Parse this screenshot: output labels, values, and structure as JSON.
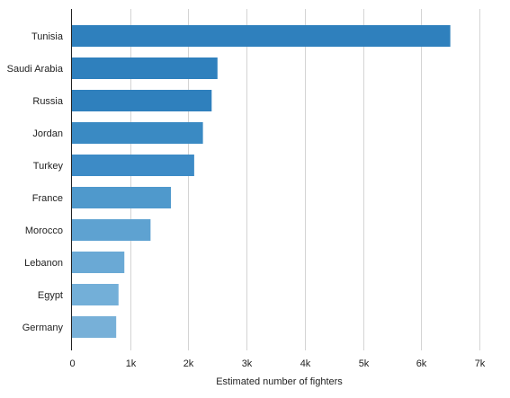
{
  "chart_data": {
    "type": "bar",
    "orientation": "horizontal",
    "categories": [
      "Tunisia",
      "Saudi Arabia",
      "Russia",
      "Jordan",
      "Turkey",
      "France",
      "Morocco",
      "Lebanon",
      "Egypt",
      "Germany"
    ],
    "values": [
      6500,
      2500,
      2400,
      2250,
      2100,
      1700,
      1350,
      900,
      800,
      760
    ],
    "colors": [
      "#2f80bd",
      "#2f80bd",
      "#2f80bd",
      "#3a8ac3",
      "#3d8bc6",
      "#4f99cc",
      "#5ea2d1",
      "#6aa9d5",
      "#73afd8",
      "#77b0d8"
    ],
    "xlabel": "Estimated number of fighters",
    "ylabel": "",
    "title": "",
    "xlim": [
      0,
      7000
    ],
    "xticks": [
      0,
      1000,
      2000,
      3000,
      4000,
      5000,
      6000,
      7000
    ],
    "xtick_labels": [
      "0",
      "1k",
      "2k",
      "3k",
      "4k",
      "5k",
      "6k",
      "7k"
    ],
    "grid": true
  }
}
